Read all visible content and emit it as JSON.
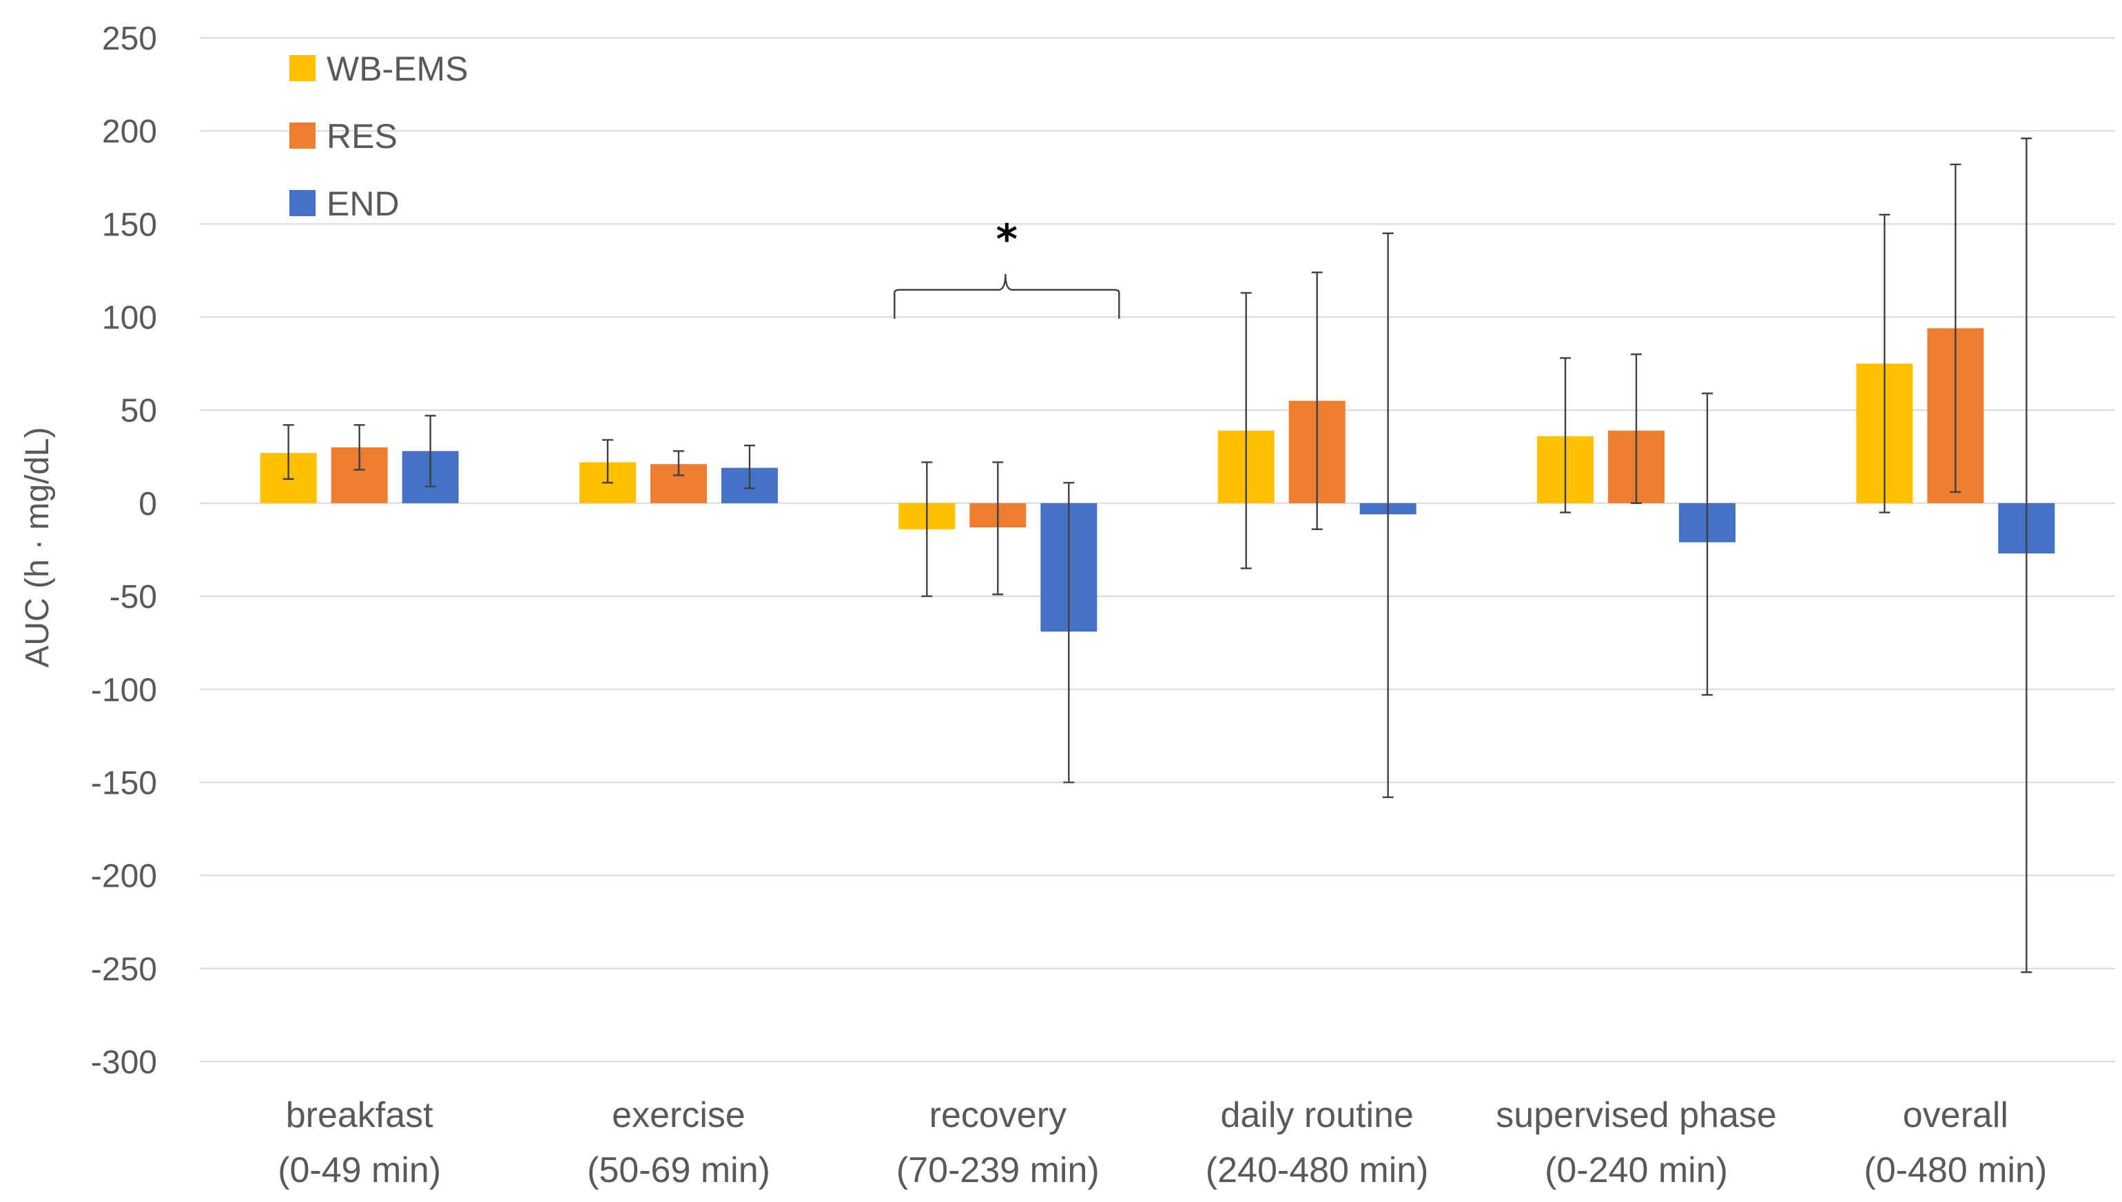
{
  "chart_data": {
    "type": "bar",
    "title": "",
    "xlabel": "",
    "ylabel": "AUC (h · mg/dL)",
    "ylim": [
      -300,
      250
    ],
    "yticks": [
      250,
      200,
      150,
      100,
      50,
      0,
      -50,
      -100,
      -150,
      -200,
      -250,
      -300
    ],
    "grid": true,
    "legend_position": "top-left",
    "categories": [
      [
        "breakfast",
        "(0-49 min)"
      ],
      [
        "exercise",
        "(50-69 min)"
      ],
      [
        "recovery",
        "(70-239 min)"
      ],
      [
        "daily routine",
        "(240-480 min)"
      ],
      [
        "supervised phase",
        "(0-240 min)"
      ],
      [
        "overall",
        "(0-480 min)"
      ]
    ],
    "series": [
      {
        "name": "WB-EMS",
        "color": "#FFC000",
        "values": [
          27,
          22,
          -14,
          39,
          36,
          75
        ],
        "error_low": [
          13,
          11,
          -50,
          -35,
          -5,
          -5
        ],
        "error_high": [
          42,
          34,
          22,
          113,
          78,
          155
        ]
      },
      {
        "name": "RES",
        "color": "#ED7D31",
        "values": [
          30,
          21,
          -13,
          55,
          39,
          94
        ],
        "error_low": [
          18,
          15,
          -49,
          -14,
          0,
          6
        ],
        "error_high": [
          42,
          28,
          22,
          124,
          80,
          182
        ]
      },
      {
        "name": "END",
        "color": "#4472C4",
        "values": [
          28,
          19,
          -69,
          -6,
          -21,
          -27
        ],
        "error_low": [
          9,
          8,
          -150,
          -158,
          -103,
          -252
        ],
        "error_high": [
          47,
          31,
          11,
          145,
          59,
          196
        ]
      }
    ],
    "annotations": [
      {
        "text": "*",
        "category_index": 2,
        "meaning": "significant difference (bracket spans recovery bars)"
      }
    ]
  }
}
